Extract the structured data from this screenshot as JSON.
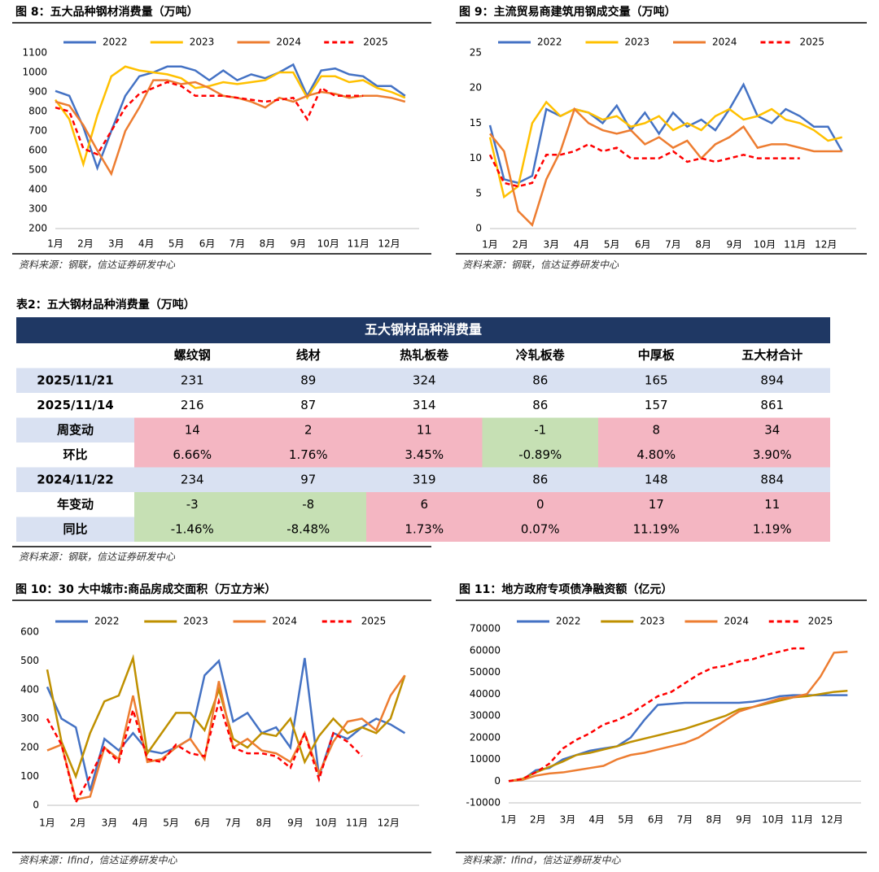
{
  "chart_data": [
    {
      "type": "line",
      "title": "图 8：五大品种钢材消费量（万吨）",
      "source": "资料来源：钢联，信达证券研发中心",
      "x": [
        1,
        3,
        5,
        7,
        9,
        11,
        13,
        15,
        17,
        19,
        21,
        23,
        25,
        27,
        29,
        31,
        33,
        35,
        37,
        39,
        41,
        43,
        45,
        47,
        49,
        51
      ],
      "xlim": [
        1,
        53
      ],
      "xticks": [
        {
          "value": 1,
          "label": "1月"
        },
        {
          "value": 5.3,
          "label": "2月"
        },
        {
          "value": 9.7,
          "label": "3月"
        },
        {
          "value": 14,
          "label": "4月"
        },
        {
          "value": 18.3,
          "label": "5月"
        },
        {
          "value": 22.7,
          "label": "6月"
        },
        {
          "value": 27,
          "label": "7月"
        },
        {
          "value": 31.3,
          "label": "8月"
        },
        {
          "value": 35.7,
          "label": "9月"
        },
        {
          "value": 40,
          "label": "10月"
        },
        {
          "value": 44.3,
          "label": "11月"
        },
        {
          "value": 48.7,
          "label": "12月"
        }
      ],
      "ylim": [
        200,
        1100
      ],
      "yticks": [
        200,
        300,
        400,
        500,
        600,
        700,
        800,
        900,
        1000,
        1100
      ],
      "series": [
        {
          "name": "2022",
          "color": "#4472c4",
          "values": [
            905,
            880,
            720,
            510,
            700,
            880,
            980,
            1000,
            1030,
            1030,
            1010,
            960,
            1010,
            960,
            990,
            970,
            1000,
            1040,
            880,
            1010,
            1020,
            990,
            980,
            930,
            930,
            880
          ]
        },
        {
          "name": "2023",
          "color": "#ffc000",
          "values": [
            860,
            760,
            530,
            780,
            980,
            1030,
            1010,
            1000,
            990,
            970,
            920,
            930,
            950,
            940,
            950,
            960,
            1000,
            1000,
            870,
            980,
            980,
            950,
            960,
            920,
            900,
            870
          ]
        },
        {
          "name": "2024",
          "color": "#ed7d31",
          "values": [
            850,
            830,
            730,
            600,
            480,
            700,
            820,
            960,
            960,
            940,
            950,
            920,
            880,
            870,
            850,
            820,
            870,
            850,
            880,
            900,
            890,
            870,
            880,
            880,
            870,
            850
          ]
        },
        {
          "name": "2025",
          "color": "#ff0000",
          "dashed": true,
          "values": [
            820,
            800,
            610,
            580,
            700,
            820,
            890,
            920,
            950,
            930,
            880,
            880,
            880,
            870,
            860,
            850,
            860,
            870,
            760,
            920,
            880,
            880,
            880,
            null,
            null,
            null
          ]
        }
      ]
    },
    {
      "type": "line",
      "title": "图 9：主流贸易商建筑用钢成交量（万吨）",
      "source": "资料来源：钢联，信达证券研发中心",
      "x": [
        1,
        3,
        5,
        7,
        9,
        11,
        13,
        15,
        17,
        19,
        21,
        23,
        25,
        27,
        29,
        31,
        33,
        35,
        37,
        39,
        41,
        43,
        45,
        47,
        49,
        51
      ],
      "xlim": [
        1,
        53
      ],
      "xticks": [
        {
          "value": 1,
          "label": "1月"
        },
        {
          "value": 5.3,
          "label": "2月"
        },
        {
          "value": 9.7,
          "label": "3月"
        },
        {
          "value": 14,
          "label": "4月"
        },
        {
          "value": 18.3,
          "label": "5月"
        },
        {
          "value": 22.7,
          "label": "6月"
        },
        {
          "value": 27,
          "label": "7月"
        },
        {
          "value": 31.3,
          "label": "8月"
        },
        {
          "value": 35.7,
          "label": "9月"
        },
        {
          "value": 40,
          "label": "10月"
        },
        {
          "value": 44.3,
          "label": "11月"
        },
        {
          "value": 48.7,
          "label": "12月"
        }
      ],
      "ylim": [
        0,
        25
      ],
      "yticks": [
        0,
        5,
        10,
        15,
        20,
        25
      ],
      "series": [
        {
          "name": "2022",
          "color": "#4472c4",
          "values": [
            14.7,
            7,
            6.5,
            7.5,
            17,
            16,
            17,
            16.5,
            15,
            17.5,
            14,
            16.5,
            13.5,
            16.5,
            14.5,
            15.5,
            14,
            17,
            20.5,
            16,
            15,
            17,
            16,
            14.5,
            14.5,
            11
          ]
        },
        {
          "name": "2023",
          "color": "#ffc000",
          "values": [
            13,
            4.5,
            6,
            15,
            18,
            16,
            17,
            16.5,
            15.5,
            16,
            14.5,
            15,
            16,
            14,
            15,
            14,
            16,
            17,
            15.5,
            16,
            17,
            15.5,
            15,
            14,
            12.5,
            13
          ]
        },
        {
          "name": "2024",
          "color": "#ed7d31",
          "values": [
            13.5,
            11,
            2.5,
            0.5,
            7,
            11,
            17,
            15,
            14,
            13.5,
            14,
            12,
            13,
            11.5,
            12.5,
            10,
            12,
            13,
            14.5,
            11.5,
            12,
            12,
            11.5,
            11,
            11,
            11
          ]
        },
        {
          "name": "2025",
          "color": "#ff0000",
          "dashed": true,
          "values": [
            10.5,
            6.5,
            6,
            6.5,
            10.5,
            10.5,
            11,
            12,
            11,
            11.5,
            10,
            10,
            10,
            11,
            9.5,
            10,
            9.5,
            10,
            10.5,
            10,
            10,
            10,
            10,
            null,
            null,
            null
          ]
        }
      ]
    },
    {
      "type": "line",
      "title": "图 10：30 大中城市:商品房成交面积（万立方米）",
      "source": "资料来源：Ifind，信达证券研发中心",
      "x": [
        1,
        3,
        5,
        7,
        9,
        11,
        13,
        15,
        17,
        19,
        21,
        23,
        25,
        27,
        29,
        31,
        33,
        35,
        37,
        39,
        41,
        43,
        45,
        47,
        49,
        51
      ],
      "xlim": [
        1,
        53
      ],
      "xticks": [
        {
          "value": 1,
          "label": "1月"
        },
        {
          "value": 5.3,
          "label": "2月"
        },
        {
          "value": 9.7,
          "label": "3月"
        },
        {
          "value": 14,
          "label": "4月"
        },
        {
          "value": 18.3,
          "label": "5月"
        },
        {
          "value": 22.7,
          "label": "6月"
        },
        {
          "value": 27,
          "label": "7月"
        },
        {
          "value": 31.3,
          "label": "8月"
        },
        {
          "value": 35.7,
          "label": "9月"
        },
        {
          "value": 40,
          "label": "10月"
        },
        {
          "value": 44.3,
          "label": "11月"
        },
        {
          "value": 48.7,
          "label": "12月"
        }
      ],
      "ylim": [
        0,
        600
      ],
      "yticks": [
        0,
        100,
        200,
        300,
        400,
        500,
        600
      ],
      "series": [
        {
          "name": "2022",
          "color": "#4472c4",
          "values": [
            410,
            300,
            270,
            50,
            230,
            190,
            250,
            190,
            180,
            200,
            230,
            450,
            500,
            290,
            320,
            250,
            270,
            200,
            510,
            100,
            250,
            230,
            270,
            300,
            280,
            250
          ]
        },
        {
          "name": "2023",
          "color": "#bf9000",
          "values": [
            470,
            220,
            100,
            250,
            360,
            380,
            510,
            180,
            250,
            320,
            320,
            260,
            400,
            230,
            200,
            250,
            240,
            300,
            150,
            240,
            300,
            250,
            270,
            250,
            300,
            450
          ]
        },
        {
          "name": "2024",
          "color": "#ed7d31",
          "values": [
            190,
            210,
            20,
            30,
            200,
            160,
            380,
            150,
            160,
            200,
            230,
            160,
            430,
            200,
            230,
            190,
            180,
            150,
            250,
            110,
            220,
            290,
            300,
            260,
            380,
            450
          ]
        },
        {
          "name": "2025",
          "color": "#ff0000",
          "dashed": true,
          "values": [
            300,
            210,
            10,
            100,
            200,
            150,
            330,
            160,
            150,
            210,
            180,
            170,
            360,
            200,
            180,
            180,
            170,
            130,
            250,
            90,
            250,
            220,
            170,
            null,
            null,
            null
          ]
        }
      ]
    },
    {
      "type": "line",
      "title": "图 11：地方政府专项债净融资额（亿元）",
      "source": "资料来源：Ifind，信达证券研发中心",
      "x": [
        1,
        3,
        5,
        7,
        9,
        11,
        13,
        15,
        17,
        19,
        21,
        23,
        25,
        27,
        29,
        31,
        33,
        35,
        37,
        39,
        41,
        43,
        45,
        47,
        49,
        51
      ],
      "xlim": [
        1,
        53
      ],
      "xticks": [
        {
          "value": 1,
          "label": "1月"
        },
        {
          "value": 5.3,
          "label": "2月"
        },
        {
          "value": 9.7,
          "label": "3月"
        },
        {
          "value": 14,
          "label": "4月"
        },
        {
          "value": 18.3,
          "label": "5月"
        },
        {
          "value": 22.7,
          "label": "6月"
        },
        {
          "value": 27,
          "label": "7月"
        },
        {
          "value": 31.3,
          "label": "8月"
        },
        {
          "value": 35.7,
          "label": "9月"
        },
        {
          "value": 40,
          "label": "10月"
        },
        {
          "value": 44.3,
          "label": "11月"
        },
        {
          "value": 48.7,
          "label": "12月"
        }
      ],
      "ylim": [
        -10000,
        70000
      ],
      "yticks": [
        -10000,
        0,
        10000,
        20000,
        30000,
        40000,
        50000,
        60000,
        70000
      ],
      "series": [
        {
          "name": "2022",
          "color": "#4472c4",
          "values": [
            0,
            500,
            5000,
            6000,
            10000,
            12000,
            14000,
            15000,
            16000,
            20000,
            28000,
            35000,
            35500,
            36000,
            36000,
            36000,
            36000,
            36000,
            36500,
            37500,
            39000,
            39500,
            39500,
            39500,
            39500,
            39500
          ]
        },
        {
          "name": "2023",
          "color": "#bf9000",
          "values": [
            0,
            1000,
            4000,
            6500,
            9000,
            12000,
            13000,
            14500,
            16000,
            18000,
            19500,
            21000,
            22500,
            24000,
            26000,
            28000,
            30000,
            33000,
            34000,
            35500,
            37000,
            38500,
            39000,
            40000,
            41000,
            41500
          ]
        },
        {
          "name": "2024",
          "color": "#ed7d31",
          "values": [
            0,
            500,
            2500,
            3500,
            4000,
            5000,
            6000,
            7000,
            10000,
            12000,
            13000,
            14500,
            16000,
            17500,
            20000,
            24000,
            28000,
            32000,
            34000,
            36000,
            38000,
            38500,
            40000,
            48000,
            59000,
            59500
          ]
        },
        {
          "name": "2025",
          "color": "#ff0000",
          "dashed": true,
          "values": [
            0,
            1000,
            4000,
            8000,
            15000,
            19000,
            22000,
            26000,
            28000,
            31000,
            35000,
            39000,
            41000,
            45000,
            49000,
            52000,
            53000,
            55000,
            56000,
            58000,
            59500,
            61000,
            61000,
            null,
            null,
            null
          ]
        }
      ]
    }
  ],
  "table": {
    "title": "表2：五大钢材品种消费量（万吨）",
    "header": "五大钢材品种消费量",
    "source": "资料来源：钢联，信达证券研发中心",
    "columns": [
      "螺纹钢",
      "线材",
      "热轧板卷",
      "冷轧板卷",
      "中厚板",
      "五大材合计"
    ],
    "rows": [
      {
        "label": "2025/11/21",
        "cells": [
          "231",
          "89",
          "324",
          "86",
          "165",
          "894"
        ],
        "label_color": "#d9e1f2",
        "colors": [
          "#d9e1f2",
          "#d9e1f2",
          "#d9e1f2",
          "#d9e1f2",
          "#d9e1f2",
          "#d9e1f2"
        ]
      },
      {
        "label": "2025/11/14",
        "cells": [
          "216",
          "87",
          "314",
          "86",
          "157",
          "861"
        ],
        "label_color": "#ffffff",
        "colors": [
          "#ffffff",
          "#ffffff",
          "#ffffff",
          "#ffffff",
          "#ffffff",
          "#ffffff"
        ]
      },
      {
        "label": "周变动",
        "cells": [
          "14",
          "2",
          "11",
          "-1",
          "8",
          "34"
        ],
        "label_color": "#d9e1f2",
        "colors": [
          "#f4b6c2",
          "#f4b6c2",
          "#f4b6c2",
          "#c6e0b4",
          "#f4b6c2",
          "#f4b6c2"
        ]
      },
      {
        "label": "环比",
        "cells": [
          "6.66%",
          "1.76%",
          "3.45%",
          "-0.89%",
          "4.80%",
          "3.90%"
        ],
        "label_color": "#ffffff",
        "colors": [
          "#f4b6c2",
          "#f4b6c2",
          "#f4b6c2",
          "#c6e0b4",
          "#f4b6c2",
          "#f4b6c2"
        ]
      },
      {
        "label": "2024/11/22",
        "cells": [
          "234",
          "97",
          "319",
          "86",
          "148",
          "884"
        ],
        "label_color": "#d9e1f2",
        "colors": [
          "#d9e1f2",
          "#d9e1f2",
          "#d9e1f2",
          "#d9e1f2",
          "#d9e1f2",
          "#d9e1f2"
        ]
      },
      {
        "label": "年变动",
        "cells": [
          "-3",
          "-8",
          "6",
          "0",
          "17",
          "11"
        ],
        "label_color": "#ffffff",
        "colors": [
          "#c6e0b4",
          "#c6e0b4",
          "#f4b6c2",
          "#f4b6c2",
          "#f4b6c2",
          "#f4b6c2"
        ]
      },
      {
        "label": "同比",
        "cells": [
          "-1.46%",
          "-8.48%",
          "1.73%",
          "0.07%",
          "11.19%",
          "1.19%"
        ],
        "label_color": "#d9e1f2",
        "colors": [
          "#c6e0b4",
          "#c6e0b4",
          "#f4b6c2",
          "#f4b6c2",
          "#f4b6c2",
          "#f4b6c2"
        ]
      }
    ]
  }
}
